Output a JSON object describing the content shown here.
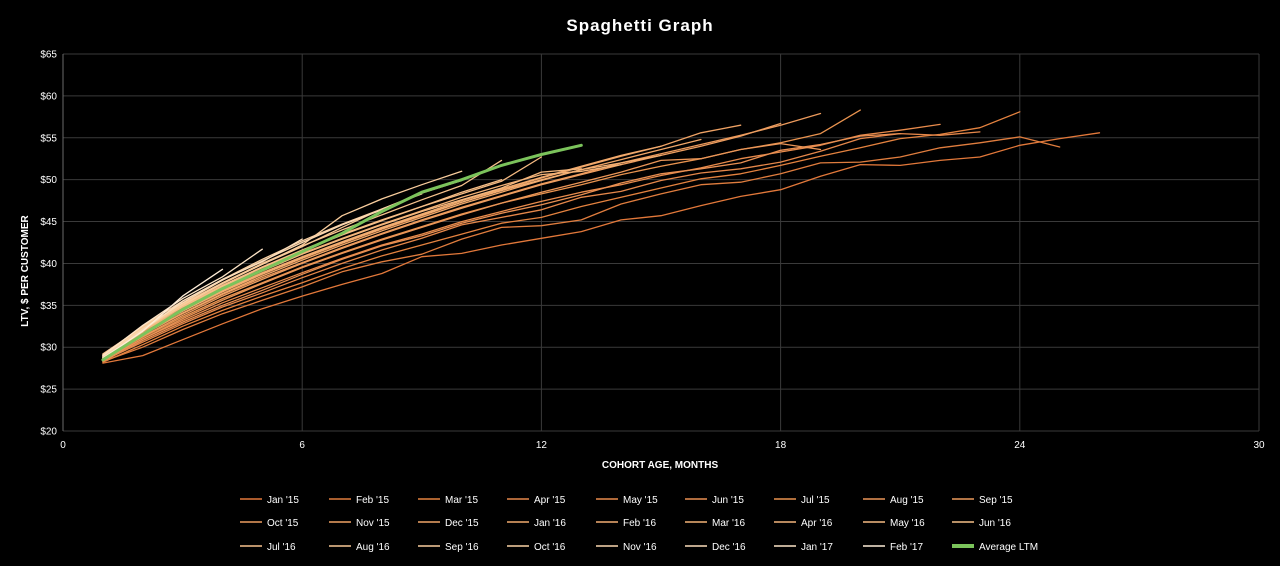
{
  "chart_data": {
    "type": "line",
    "title": "Spaghetti Graph",
    "xlabel": "COHORT AGE, MONTHS",
    "ylabel": "LTV, $  PER CUSTOMER",
    "xlim": [
      0,
      30
    ],
    "ylim": [
      20,
      65
    ],
    "x_ticks": [
      0,
      6,
      12,
      18,
      24,
      30
    ],
    "y_ticks": [
      20,
      25,
      30,
      35,
      40,
      45,
      50,
      55,
      60,
      65
    ],
    "y_tick_format": "$",
    "grid": true,
    "legend_position": "bottom",
    "background_color": "#000000",
    "series": [
      {
        "name": "Jan '15",
        "color": "#E2783A",
        "x": [
          1,
          2,
          3,
          4,
          5,
          6,
          7,
          8,
          9,
          10,
          11,
          12,
          13,
          14,
          15,
          16,
          17,
          18,
          19,
          20,
          21,
          22,
          23,
          24,
          25,
          26
        ],
        "y": [
          28.1,
          29.0,
          30.9,
          32.8,
          34.6,
          36.1,
          37.5,
          38.8,
          40.8,
          41.2,
          42.2,
          43.0,
          43.8,
          45.2,
          45.7,
          46.9,
          48.0,
          48.8,
          50.4,
          51.8,
          51.7,
          52.3,
          52.7,
          54.1,
          54.9,
          55.6
        ]
      },
      {
        "name": "Feb '15",
        "color": "#E07D3E",
        "x": [
          1,
          2,
          3,
          4,
          5,
          6,
          7,
          8,
          9,
          10,
          11,
          12,
          13,
          14,
          15,
          16,
          17,
          18,
          19,
          20,
          21,
          22,
          23,
          24,
          25
        ],
        "y": [
          28.3,
          30.0,
          32.1,
          34.0,
          35.6,
          37.2,
          39.0,
          40.2,
          41.1,
          42.9,
          44.3,
          44.5,
          45.2,
          47.1,
          48.3,
          49.4,
          49.7,
          50.7,
          52.0,
          52.1,
          52.7,
          53.8,
          54.4,
          55.1,
          53.9
        ]
      },
      {
        "name": "Mar '15",
        "color": "#E4823F",
        "x": [
          1,
          2,
          3,
          4,
          5,
          6,
          7,
          8,
          9,
          10,
          11,
          12,
          13,
          14,
          15,
          16,
          17,
          18,
          19,
          20,
          21,
          22,
          23,
          24
        ],
        "y": [
          28.2,
          30.3,
          32.5,
          34.4,
          36.1,
          37.7,
          39.4,
          40.9,
          42.2,
          43.5,
          44.8,
          45.5,
          46.8,
          47.9,
          49.0,
          50.1,
          50.7,
          51.7,
          52.8,
          53.8,
          54.9,
          55.4,
          56.2,
          58.1
        ]
      },
      {
        "name": "Apr '15",
        "color": "#E5874A",
        "x": [
          1,
          2,
          3,
          4,
          5,
          6,
          7,
          8,
          9,
          10,
          11,
          12,
          13,
          14,
          15,
          16,
          17,
          18,
          19,
          20,
          21,
          22,
          23
        ],
        "y": [
          28.4,
          30.6,
          32.8,
          34.8,
          36.5,
          38.3,
          40.0,
          41.6,
          43.0,
          44.6,
          45.5,
          46.4,
          47.9,
          48.6,
          49.9,
          50.8,
          51.3,
          52.1,
          53.4,
          54.9,
          55.5,
          55.3,
          55.7
        ]
      },
      {
        "name": "May '15",
        "color": "#E88B4C",
        "x": [
          1,
          2,
          3,
          4,
          5,
          6,
          7,
          8,
          9,
          10,
          11,
          12,
          13,
          14,
          15,
          16,
          17,
          18,
          19,
          20,
          21,
          22
        ],
        "y": [
          28.5,
          31.0,
          33.2,
          35.3,
          37.1,
          38.9,
          40.6,
          42.2,
          43.5,
          45.0,
          46.2,
          47.4,
          48.5,
          49.4,
          50.5,
          51.4,
          52.5,
          53.3,
          54.1,
          55.3,
          55.9,
          56.6
        ]
      },
      {
        "name": "Jun '15",
        "color": "#E98F52",
        "x": [
          1,
          2,
          3,
          4,
          5,
          6,
          7,
          8,
          9,
          10,
          11,
          12,
          13,
          14,
          15,
          16,
          17,
          18,
          19,
          20,
          21
        ],
        "y": [
          28.3,
          30.8,
          33.0,
          35.0,
          36.8,
          38.7,
          40.5,
          42.1,
          43.3,
          44.8,
          46.0,
          47.0,
          48.2,
          49.6,
          50.7,
          51.3,
          52.0,
          53.5,
          54.2,
          55.2,
          55.5
        ]
      },
      {
        "name": "Jul '15",
        "color": "#E9934F",
        "x": [
          1,
          2,
          3,
          4,
          5,
          6,
          7,
          8,
          9,
          10,
          11,
          12,
          13,
          14,
          15,
          16,
          17,
          18,
          19,
          20
        ],
        "y": [
          28.6,
          31.2,
          33.6,
          35.8,
          37.7,
          39.6,
          41.3,
          42.9,
          44.4,
          45.9,
          47.2,
          48.3,
          49.4,
          50.6,
          51.6,
          52.5,
          53.6,
          54.4,
          55.5,
          58.3
        ]
      },
      {
        "name": "Aug '15",
        "color": "#EB9658",
        "x": [
          1,
          2,
          3,
          4,
          5,
          6,
          7,
          8,
          9,
          10,
          11,
          12,
          13,
          14,
          15,
          16,
          17,
          18,
          19
        ],
        "y": [
          28.4,
          31.0,
          33.4,
          35.6,
          37.6,
          39.5,
          41.2,
          42.8,
          44.3,
          45.8,
          47.2,
          48.5,
          49.7,
          50.9,
          52.3,
          52.5,
          53.6,
          54.3,
          53.6
        ]
      },
      {
        "name": "Sep '15",
        "color": "#EC9A5C",
        "x": [
          1,
          2,
          3,
          4,
          5,
          6,
          7,
          8,
          9,
          10,
          11,
          12,
          13,
          14,
          15,
          16,
          17,
          18,
          19
        ],
        "y": [
          28.7,
          31.5,
          34.0,
          36.3,
          38.3,
          40.1,
          41.9,
          43.6,
          45.2,
          46.7,
          48.1,
          49.5,
          50.7,
          52.0,
          53.1,
          54.2,
          55.3,
          56.5,
          57.9
        ]
      },
      {
        "name": "Oct '15",
        "color": "#EE9E60",
        "x": [
          1,
          2,
          3,
          4,
          5,
          6,
          7,
          8,
          9,
          10,
          11,
          12,
          13,
          14,
          15,
          16,
          17,
          18
        ],
        "y": [
          28.5,
          31.3,
          33.8,
          36.1,
          38.1,
          40.0,
          41.8,
          43.5,
          45.1,
          46.6,
          48.0,
          49.4,
          50.6,
          51.8,
          52.9,
          54.0,
          55.2,
          56.7
        ]
      },
      {
        "name": "Nov '15",
        "color": "#EFA264",
        "x": [
          1,
          2,
          3,
          4,
          5,
          6,
          7,
          8,
          9,
          10,
          11,
          12,
          13,
          14,
          15,
          16,
          17
        ],
        "y": [
          28.8,
          31.7,
          34.3,
          36.6,
          38.7,
          40.6,
          42.4,
          44.1,
          45.7,
          47.3,
          48.8,
          50.2,
          51.5,
          52.8,
          54.0,
          55.6,
          56.5
        ]
      },
      {
        "name": "Dec '15",
        "color": "#F0A668",
        "x": [
          1,
          2,
          3,
          4,
          5,
          6,
          7,
          8,
          9,
          10,
          11,
          12,
          13,
          14,
          15,
          16
        ],
        "y": [
          28.6,
          31.5,
          34.1,
          36.4,
          38.5,
          40.4,
          42.2,
          43.9,
          45.5,
          47.1,
          48.5,
          49.9,
          51.2,
          52.4,
          53.6,
          54.8
        ]
      },
      {
        "name": "Jan '16",
        "color": "#F1AA6D",
        "x": [
          1,
          2,
          3,
          4,
          5,
          6,
          7,
          8,
          9,
          10,
          11,
          12,
          13,
          14,
          15
        ],
        "y": [
          28.9,
          31.9,
          34.5,
          36.8,
          38.9,
          40.8,
          42.6,
          44.3,
          45.9,
          47.5,
          48.9,
          50.3,
          51.6,
          52.9,
          54.0
        ]
      },
      {
        "name": "Feb '16",
        "color": "#F2AE72",
        "x": [
          1,
          2,
          3,
          4,
          5,
          6,
          7,
          8,
          9,
          10,
          11,
          12,
          13,
          14,
          15
        ],
        "y": [
          28.7,
          31.7,
          34.3,
          36.7,
          38.8,
          40.7,
          42.5,
          44.2,
          45.8,
          47.3,
          48.7,
          50.0,
          51.2,
          52.0,
          52.9
        ]
      },
      {
        "name": "Mar '16",
        "color": "#F3B277",
        "x": [
          1,
          2,
          3,
          4,
          5,
          6,
          7,
          8,
          9,
          10,
          11,
          12,
          13,
          14
        ],
        "y": [
          29.0,
          32.1,
          34.8,
          37.2,
          39.3,
          41.2,
          43.0,
          44.7,
          46.3,
          47.9,
          49.3,
          50.6,
          51.0,
          51.8
        ]
      },
      {
        "name": "Apr '16",
        "color": "#F4B67C",
        "x": [
          1,
          2,
          3,
          4,
          5,
          6,
          7,
          8,
          9,
          10,
          11,
          12,
          13
        ],
        "y": [
          28.8,
          31.9,
          34.6,
          37.0,
          39.1,
          41.1,
          42.9,
          44.6,
          46.2,
          47.6,
          49.0,
          50.9,
          51.3
        ]
      },
      {
        "name": "May '16",
        "color": "#F5BA82",
        "x": [
          1,
          2,
          3,
          4,
          5,
          6,
          7,
          8,
          9,
          10,
          11,
          12
        ],
        "y": [
          29.1,
          32.2,
          34.9,
          37.4,
          39.6,
          41.6,
          43.5,
          45.2,
          46.8,
          48.3,
          49.8,
          52.7
        ]
      },
      {
        "name": "Jun '16",
        "color": "#F6BF88",
        "x": [
          1,
          2,
          3,
          4,
          5,
          6,
          7,
          8,
          9,
          10,
          11
        ],
        "y": [
          28.9,
          32.0,
          34.8,
          37.3,
          39.5,
          41.5,
          43.4,
          45.1,
          46.8,
          48.5,
          50.0
        ]
      },
      {
        "name": "Jul '16",
        "color": "#F7C38E",
        "x": [
          1,
          2,
          3,
          4,
          5,
          6,
          7,
          8,
          9,
          10,
          11
        ],
        "y": [
          29.2,
          32.4,
          35.2,
          37.7,
          40.0,
          42.1,
          44.0,
          45.8,
          47.6,
          49.3,
          52.3
        ]
      },
      {
        "name": "Aug '16",
        "color": "#F8C895",
        "x": [
          1,
          2,
          3,
          4,
          5,
          6,
          7,
          8,
          9,
          10
        ],
        "y": [
          29.0,
          32.3,
          35.1,
          37.6,
          39.9,
          42.0,
          44.3,
          46.5,
          48.4,
          49.9
        ]
      },
      {
        "name": "Sep '16",
        "color": "#F9CD9D",
        "x": [
          1,
          2,
          3,
          4,
          5,
          6,
          7,
          8,
          9,
          10
        ],
        "y": [
          28.8,
          32.1,
          35.0,
          37.6,
          39.9,
          42.2,
          45.7,
          47.7,
          49.4,
          51.0
        ]
      },
      {
        "name": "Oct '16",
        "color": "#FAD2A6",
        "x": [
          1,
          2,
          3,
          4,
          5,
          6,
          7,
          8,
          9
        ],
        "y": [
          29.1,
          32.5,
          35.5,
          38.1,
          40.5,
          42.7,
          44.7,
          46.5,
          48.3
        ]
      },
      {
        "name": "Nov '16",
        "color": "#FBD8B0",
        "x": [
          1,
          2,
          3,
          4,
          5,
          6,
          7,
          8
        ],
        "y": [
          28.9,
          32.2,
          35.3,
          38.0,
          40.3,
          42.5,
          44.6,
          46.4
        ]
      },
      {
        "name": "Dec '16",
        "color": "#FCDEBB",
        "x": [
          1,
          2,
          3,
          4,
          5,
          6
        ],
        "y": [
          28.6,
          32.0,
          35.5,
          38.1,
          40.2,
          42.9
        ]
      },
      {
        "name": "Jan '17",
        "color": "#FDE5C8",
        "x": [
          1,
          2,
          3,
          4,
          5
        ],
        "y": [
          29.0,
          32.6,
          35.8,
          38.4,
          41.7
        ]
      },
      {
        "name": "Feb '17",
        "color": "#FEEDD8",
        "x": [
          1,
          2,
          3,
          4
        ],
        "y": [
          28.7,
          31.9,
          36.1,
          39.3
        ]
      },
      {
        "name": "Average LTM",
        "color": "#7BC35B",
        "x": [
          1,
          2,
          3,
          4,
          5,
          6,
          7,
          8,
          9,
          10,
          11,
          12,
          13
        ],
        "y": [
          28.5,
          31.5,
          34.5,
          37.0,
          39.2,
          41.4,
          43.6,
          46.2,
          48.5,
          50.0,
          51.7,
          53.0,
          54.1
        ]
      }
    ]
  }
}
